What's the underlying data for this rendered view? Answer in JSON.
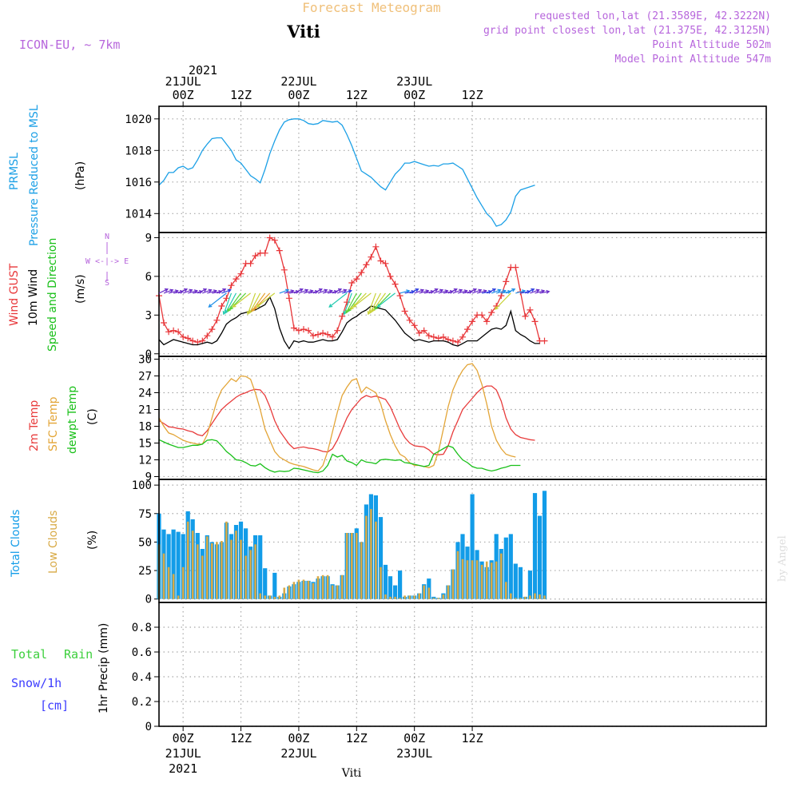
{
  "header": {
    "title": "Forecast Meteogram",
    "location": "Viti",
    "model": "ICON-EU, ~ 7km",
    "requested": "requested lon,lat (21.3589E, 42.3222N)",
    "gridpoint": "grid point closest lon,lat (21.375E, 42.3125N)",
    "point_altitude": "Point Altitude 502m",
    "model_altitude": "Model Point Altitude 547m"
  },
  "footer": {
    "location": "Viti",
    "credit": "by Angel"
  },
  "time_axis": {
    "x_range": [
      -5,
      121
    ],
    "year": "2021",
    "top_labels": [
      {
        "t": 0,
        "lines": [
          "21JUL",
          "00Z"
        ]
      },
      {
        "t": 24,
        "lines": [
          "22JUL",
          "00Z"
        ]
      },
      {
        "t": 48,
        "lines": [
          "23JUL",
          "00Z"
        ]
      },
      {
        "t": 12,
        "lines": [
          "12Z"
        ]
      },
      {
        "t": 36,
        "lines": [
          "12Z"
        ]
      },
      {
        "t": 60,
        "lines": [
          "12Z"
        ]
      }
    ],
    "bottom_labels": [
      {
        "t": 0,
        "lines": [
          "00Z",
          "21JUL",
          "2021"
        ]
      },
      {
        "t": 24,
        "lines": [
          "00Z",
          "22JUL"
        ]
      },
      {
        "t": 48,
        "lines": [
          "00Z",
          "23JUL"
        ]
      },
      {
        "t": 12,
        "lines": [
          "12Z"
        ]
      },
      {
        "t": 36,
        "lines": [
          "12Z"
        ]
      },
      {
        "t": 60,
        "lines": [
          "12Z"
        ]
      }
    ]
  },
  "panel_labels": {
    "pressure": {
      "line1": "PRMSL",
      "line2": "Pressure Reduced to MSL",
      "unit": "(hPa)"
    },
    "wind": {
      "gust": "Wind GUST",
      "wind10": "10m Wind",
      "dir": "Speed and Direction",
      "unit": "(m/s)",
      "compass": "W <-|-> E",
      "compass_n": "N",
      "compass_s": "S"
    },
    "temp": {
      "t2m": "2m Temp",
      "sfc": "SFC Temp",
      "dew": "dewpt Temp",
      "unit": "(C)"
    },
    "clouds": {
      "total": "Total Clouds",
      "low": "Low Clouds",
      "unit": "(%)"
    },
    "precip": {
      "total": "Total",
      "rain": "Rain",
      "snow": "Snow/1h",
      "cm": "[cm]",
      "unit": "1hr Precip (mm)"
    }
  },
  "colors": {
    "pressure": "#1ca0e6",
    "gust": "#e8373a",
    "wind": "#000000",
    "t2m": "#e83c3c",
    "sfc": "#e3a537",
    "dew": "#19c019",
    "total_cloud": "#129ce8",
    "low_cloud": "#d8aa46",
    "label_purple": "#b766dc",
    "title_orange": "#f0c07a",
    "green_label": "#3ccf3c",
    "blue_label": "#3c3cff",
    "grid": "#a8a8a8"
  },
  "chart_data": [
    {
      "type": "line",
      "title": "PRMSL Pressure Reduced to MSL",
      "ylabel": "(hPa)",
      "ylim": [
        1012.8,
        1020.8
      ],
      "yticks": [
        1014,
        1016,
        1018,
        1020
      ],
      "x_start": -5,
      "x_step": 1,
      "series": [
        {
          "name": "PRMSL",
          "values": [
            1015.8,
            1016.1,
            1016.6,
            1016.6,
            1016.9,
            1017.0,
            1016.8,
            1016.9,
            1017.4,
            1018.0,
            1018.4,
            1018.75,
            1018.8,
            1018.8,
            1018.4,
            1018.0,
            1017.4,
            1017.2,
            1016.8,
            1016.4,
            1016.2,
            1015.95,
            1016.8,
            1017.8,
            1018.6,
            1019.3,
            1019.8,
            1019.95,
            1020.0,
            1020.0,
            1019.9,
            1019.7,
            1019.65,
            1019.7,
            1019.9,
            1019.85,
            1019.8,
            1019.85,
            1019.6,
            1019.0,
            1018.3,
            1017.5,
            1016.7,
            1016.5,
            1016.3,
            1016.0,
            1015.7,
            1015.5,
            1016.0,
            1016.5,
            1016.8,
            1017.2,
            1017.2,
            1017.3,
            1017.2,
            1017.1,
            1017.0,
            1017.05,
            1017.0,
            1017.15,
            1017.15,
            1017.2,
            1017.0,
            1016.8,
            1016.2,
            1015.6,
            1015.0,
            1014.5,
            1014.0,
            1013.7,
            1013.2,
            1013.3,
            1013.6,
            1014.1,
            1015.1,
            1015.5,
            1015.6,
            1015.7,
            1015.8
          ]
        }
      ]
    },
    {
      "type": "line",
      "title": "Wind GUST, 10m Wind Speed and Direction",
      "ylabel": "(m/s)",
      "ylim": [
        -0.2,
        9.4
      ],
      "yticks": [
        0,
        3,
        6,
        9
      ],
      "x_start": -5,
      "x_step": 1,
      "series": [
        {
          "name": "Wind GUST",
          "values": [
            4.5,
            2.4,
            1.7,
            1.8,
            1.7,
            1.3,
            1.2,
            1.0,
            0.9,
            1.0,
            1.4,
            1.9,
            2.6,
            3.7,
            4.3,
            5.3,
            5.8,
            6.2,
            7.0,
            7.0,
            7.6,
            7.8,
            7.8,
            9.0,
            8.8,
            8.0,
            6.5,
            4.3,
            2.0,
            1.8,
            1.9,
            1.8,
            1.4,
            1.5,
            1.6,
            1.5,
            1.3,
            1.8,
            2.9,
            4.0,
            5.5,
            5.8,
            6.3,
            6.9,
            7.5,
            8.3,
            7.2,
            7.0,
            6.0,
            5.4,
            4.5,
            3.3,
            2.6,
            2.2,
            1.6,
            1.8,
            1.4,
            1.3,
            1.2,
            1.3,
            1.1,
            1.0,
            0.9,
            1.3,
            1.9,
            2.5,
            3.0,
            3.0,
            2.5,
            3.2,
            3.7,
            4.5,
            5.6,
            6.7,
            6.7,
            4.8,
            2.9,
            3.4,
            2.5,
            1.0,
            1.0
          ]
        },
        {
          "name": "10m Wind",
          "values": [
            1.1,
            0.7,
            0.9,
            1.1,
            1.0,
            0.9,
            0.8,
            0.7,
            0.7,
            0.8,
            0.9,
            0.8,
            1.0,
            1.6,
            2.3,
            2.6,
            2.8,
            3.1,
            3.2,
            3.3,
            3.4,
            3.6,
            3.8,
            4.4,
            3.5,
            2.0,
            1.0,
            0.4,
            1.0,
            0.9,
            1.0,
            0.9,
            0.9,
            1.0,
            1.1,
            1.0,
            1.0,
            1.1,
            1.7,
            2.4,
            2.7,
            2.9,
            3.2,
            3.4,
            3.7,
            3.6,
            3.5,
            3.4,
            3.0,
            2.6,
            2.1,
            1.6,
            1.3,
            1.0,
            1.1,
            1.0,
            0.9,
            1.0,
            1.0,
            1.0,
            0.9,
            0.7,
            0.6,
            0.8,
            1.0,
            1.0,
            1.0,
            1.3,
            1.6,
            1.9,
            2.0,
            1.9,
            2.2,
            3.3,
            1.8,
            1.5,
            1.3,
            1.0,
            0.8,
            0.8
          ]
        }
      ]
    },
    {
      "type": "line",
      "title": "2m Temp, SFC Temp, dewpt Temp",
      "ylabel": "(C)",
      "ylim": [
        8.5,
        30.5
      ],
      "yticks": [
        9,
        12,
        15,
        18,
        21,
        24,
        27,
        30
      ],
      "x_start": -5,
      "x_step": 1,
      "series": [
        {
          "name": "2m Temp",
          "values": [
            19.0,
            18.5,
            17.9,
            17.8,
            17.6,
            17.5,
            17.2,
            17.0,
            16.5,
            16.3,
            17.2,
            18.5,
            19.8,
            21.0,
            21.8,
            22.5,
            23.2,
            23.7,
            24.0,
            24.4,
            24.6,
            24.5,
            23.5,
            21.5,
            19.0,
            17.2,
            16.0,
            14.8,
            14.0,
            14.2,
            14.3,
            14.1,
            14.0,
            13.8,
            13.5,
            13.4,
            14.0,
            15.5,
            17.5,
            19.5,
            21.0,
            22.0,
            23.0,
            23.5,
            23.2,
            23.4,
            23.1,
            22.8,
            21.5,
            19.5,
            17.5,
            16.0,
            15.0,
            14.5,
            14.4,
            14.3,
            13.8,
            13.0,
            12.9,
            13.0,
            14.5,
            17.0,
            19.0,
            21.0,
            22.0,
            23.0,
            24.0,
            24.8,
            25.2,
            25.2,
            24.5,
            22.5,
            19.5,
            17.5,
            16.5,
            16.0,
            15.8,
            15.6,
            15.5
          ]
        },
        {
          "name": "SFC Temp",
          "values": [
            19.5,
            18.0,
            16.8,
            16.5,
            16.0,
            15.5,
            15.2,
            15.0,
            14.8,
            14.8,
            16.5,
            19.5,
            22.5,
            24.5,
            25.5,
            26.5,
            26.0,
            27.0,
            26.9,
            26.4,
            24.0,
            21.0,
            17.5,
            15.5,
            13.5,
            12.5,
            12.0,
            11.5,
            11.2,
            11.0,
            10.8,
            10.5,
            10.2,
            10.0,
            11.0,
            13.5,
            17.0,
            20.5,
            23.5,
            25.0,
            26.2,
            26.5,
            24.0,
            25.0,
            24.5,
            24.0,
            22.0,
            19.0,
            16.5,
            14.5,
            13.0,
            12.5,
            11.5,
            11.0,
            11.0,
            10.8,
            10.6,
            11.0,
            13.5,
            17.5,
            21.5,
            24.5,
            26.5,
            28.0,
            29.0,
            29.2,
            28.0,
            25.5,
            22.0,
            18.0,
            15.5,
            14.0,
            13.0,
            12.7,
            12.5
          ]
        },
        {
          "name": "dewpt Temp",
          "values": [
            15.6,
            15.2,
            14.8,
            14.5,
            14.2,
            14.2,
            14.4,
            14.6,
            14.6,
            14.8,
            15.5,
            15.6,
            15.4,
            14.5,
            13.5,
            12.8,
            12.0,
            11.9,
            11.5,
            11.0,
            10.9,
            11.3,
            10.6,
            10.1,
            9.8,
            10.0,
            9.9,
            10.0,
            10.5,
            10.4,
            10.2,
            10.0,
            9.8,
            9.7,
            10.0,
            11.0,
            13.0,
            12.5,
            12.8,
            11.8,
            11.5,
            11.0,
            12.0,
            11.6,
            11.5,
            11.3,
            12.0,
            12.1,
            12.0,
            11.9,
            12.0,
            11.5,
            11.4,
            11.2,
            11.0,
            10.8,
            11.0,
            13.0,
            13.5,
            14.0,
            14.5,
            14.2,
            13.0,
            12.0,
            11.5,
            10.8,
            10.5,
            10.5,
            10.2,
            10.0,
            10.2,
            10.5,
            10.7,
            11.0,
            11.0,
            11.0
          ]
        }
      ]
    },
    {
      "type": "bar",
      "title": "Total Clouds, Low Clouds",
      "ylabel": "(%)",
      "ylim": [
        -3,
        105
      ],
      "yticks": [
        0,
        25,
        50,
        75,
        100
      ],
      "x_start": -5,
      "x_step": 1,
      "series": [
        {
          "name": "Total Clouds",
          "values": [
            75,
            61,
            57,
            61,
            59,
            57,
            77,
            70,
            58,
            44,
            56,
            50,
            48,
            50,
            67,
            57,
            65,
            68,
            62,
            46,
            56,
            56,
            27,
            3,
            23,
            2,
            5,
            11,
            13,
            15,
            16,
            16,
            15,
            18,
            20,
            20,
            13,
            12,
            21,
            58,
            58,
            62,
            50,
            83,
            92,
            91,
            72,
            30,
            20,
            12,
            25,
            2,
            3,
            3,
            5,
            13,
            18,
            2,
            1,
            5,
            12,
            26,
            50,
            57,
            46,
            92,
            43,
            33,
            28,
            34,
            57,
            44,
            54,
            57,
            31,
            28,
            2,
            25,
            93,
            73,
            95
          ]
        },
        {
          "name": "Low Clouds",
          "values": [
            48,
            40,
            28,
            22,
            3,
            28,
            68,
            60,
            48,
            38,
            55,
            49,
            50,
            51,
            68,
            52,
            60,
            52,
            38,
            43,
            48,
            5,
            3,
            3,
            2,
            3,
            10,
            12,
            15,
            17,
            17,
            16,
            14,
            20,
            21,
            21,
            12,
            12,
            21,
            58,
            58,
            58,
            50,
            73,
            79,
            68,
            28,
            4,
            2,
            2,
            1,
            3,
            3,
            3,
            5,
            12,
            10,
            1,
            1,
            4,
            12,
            26,
            42,
            35,
            34,
            34,
            34,
            30,
            33,
            32,
            33,
            40,
            15,
            5,
            1,
            1,
            2,
            3,
            5,
            4,
            3
          ]
        }
      ]
    },
    {
      "type": "bar",
      "title": "1hr Precip",
      "ylabel": "1hr Precip (mm)",
      "ylim": [
        0,
        1.0
      ],
      "yticks": [
        0,
        0.2,
        0.4,
        0.6,
        0.8
      ],
      "x_start": -5,
      "x_step": 1,
      "series": [
        {
          "name": "Total Rain",
          "values": []
        },
        {
          "name": "Snow/1h",
          "values": []
        }
      ]
    }
  ]
}
